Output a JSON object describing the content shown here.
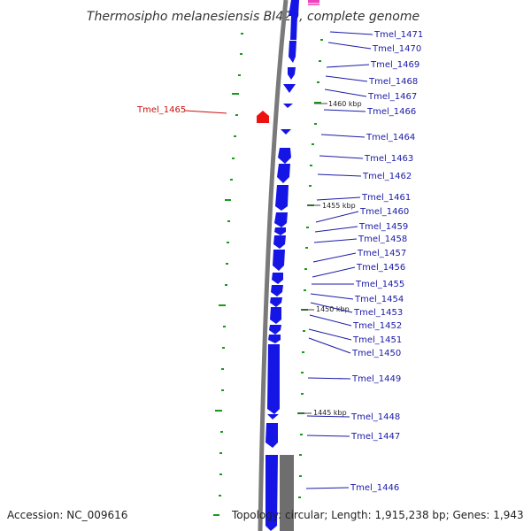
{
  "title": "Thermosipho melanesiensis BI429, complete genome",
  "accession": "Accession: NC_009616",
  "topology": "Topology: circular; Length: 1,915,238 bp; Genes: 1,943",
  "colors": {
    "forward_gene": "#1515e6",
    "reverse_gene": "#ee1111",
    "rna_feature": "#ee44bb",
    "gc_marker": "#1a9a1a",
    "backbone": "#7a7a7a",
    "label_forward": "#1a1aa8",
    "label_reverse": "#cc1111"
  },
  "scale_labels": [
    "1460 kbp",
    "1455 kbp",
    "1450 kbp",
    "1445 kbp"
  ],
  "reverse_genes": [
    "Tmel_1465"
  ],
  "forward_genes": [
    "Tmel_1471",
    "Tmel_1470",
    "Tmel_1469",
    "Tmel_1468",
    "Tmel_1467",
    "Tmel_1466",
    "Tmel_1464",
    "Tmel_1463",
    "Tmel_1462",
    "Tmel_1461",
    "Tmel_1460",
    "Tmel_1459",
    "Tmel_1458",
    "Tmel_1457",
    "Tmel_1456",
    "Tmel_1455",
    "Tmel_1454",
    "Tmel_1453",
    "Tmel_1452",
    "Tmel_1451",
    "Tmel_1450",
    "Tmel_1449",
    "Tmel_1448",
    "Tmel_1447",
    "Tmel_1446"
  ]
}
